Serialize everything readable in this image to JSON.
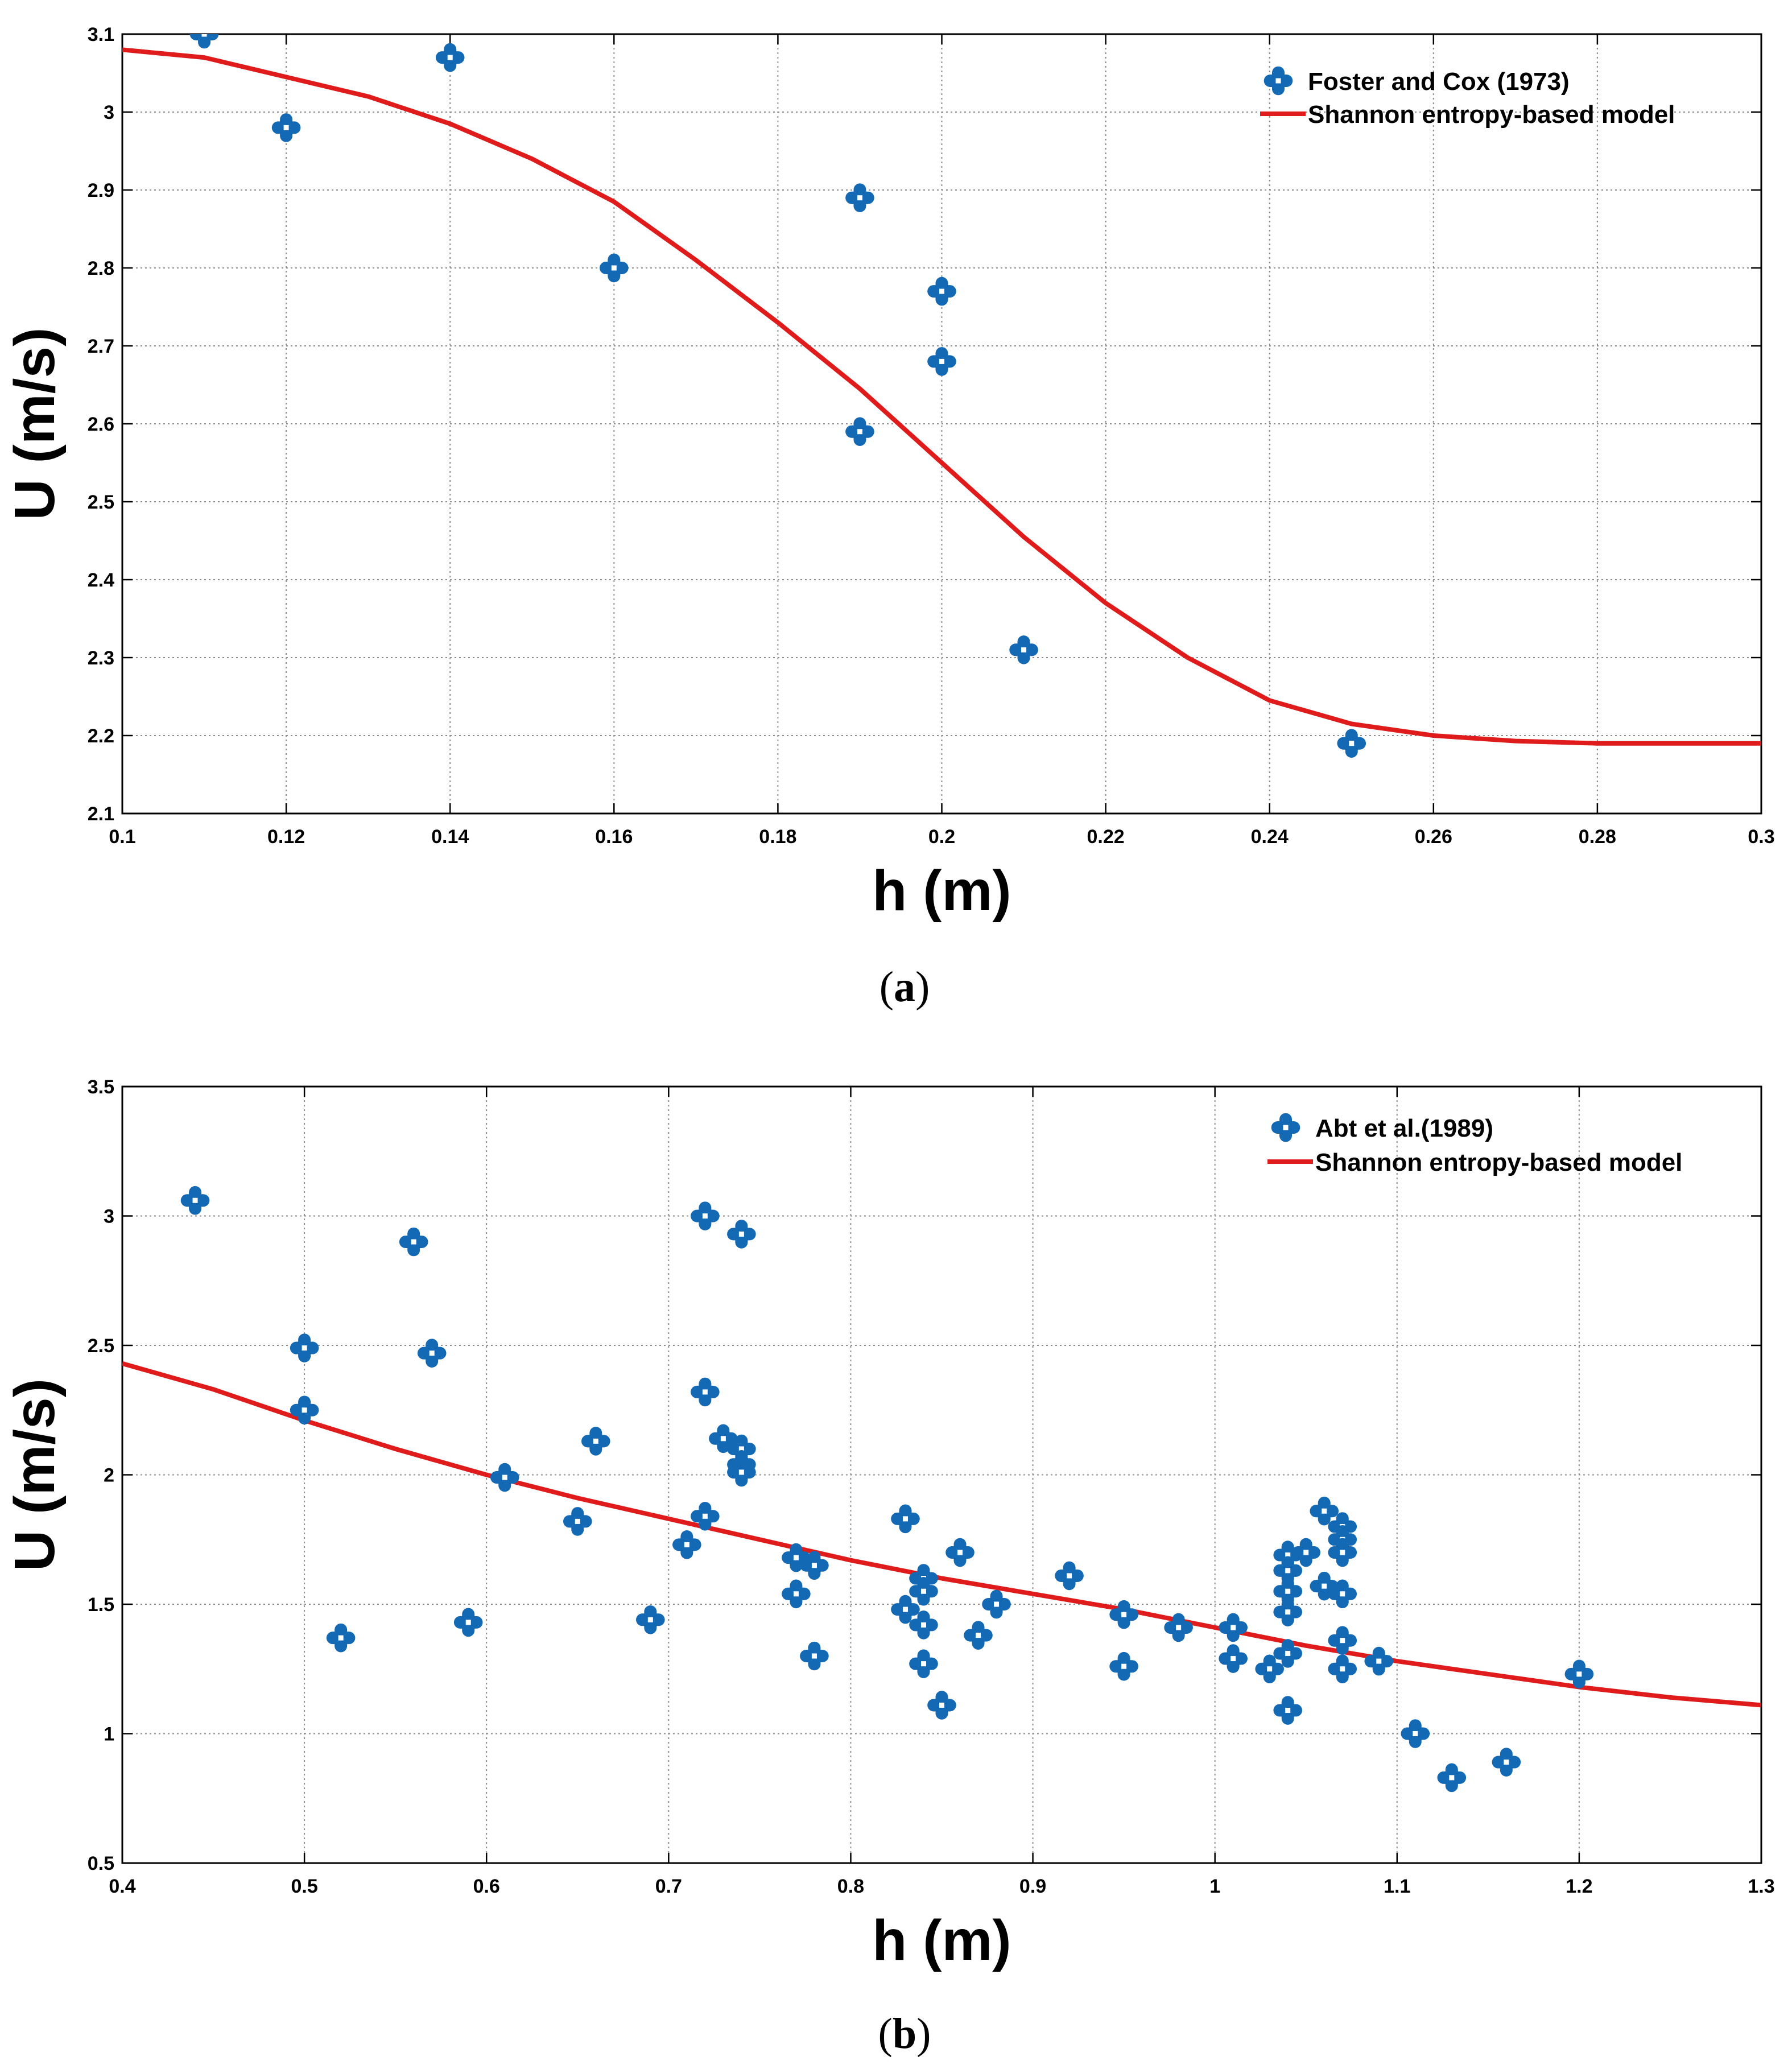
{
  "chart_data": [
    {
      "type": "scatter",
      "panel_id": "a",
      "caption": "(a)",
      "caption_letter": "a",
      "xlabel": "h (m)",
      "ylabel": "U (m/s)",
      "xlim": [
        0.1,
        0.3
      ],
      "ylim": [
        2.1,
        3.1
      ],
      "xticks": [
        0.1,
        0.12,
        0.14,
        0.16,
        0.18,
        0.2,
        0.22,
        0.24,
        0.26,
        0.28,
        0.3
      ],
      "yticks": [
        2.1,
        2.2,
        2.3,
        2.4,
        2.5,
        2.6,
        2.7,
        2.8,
        2.9,
        3,
        3.1
      ],
      "xtick_labels": [
        "0.1",
        "0.12",
        "0.14",
        "0.16",
        "0.18",
        "0.2",
        "0.22",
        "0.24",
        "0.26",
        "0.28",
        "0.3"
      ],
      "ytick_labels": [
        "2.1",
        "2.2",
        "2.3",
        "2.4",
        "2.5",
        "2.6",
        "2.7",
        "2.8",
        "2.9",
        "3",
        "3.1"
      ],
      "grid": true,
      "legend_position": "top-right",
      "series": [
        {
          "name": "Foster and Cox (1973)",
          "kind": "scatter",
          "color": "#1469b4",
          "points": [
            [
              0.11,
              3.1
            ],
            [
              0.12,
              2.98
            ],
            [
              0.14,
              3.07
            ],
            [
              0.16,
              2.8
            ],
            [
              0.19,
              2.89
            ],
            [
              0.19,
              2.59
            ],
            [
              0.2,
              2.77
            ],
            [
              0.2,
              2.68
            ],
            [
              0.21,
              2.31
            ],
            [
              0.25,
              2.19
            ]
          ]
        },
        {
          "name": "Shannon entropy-based model",
          "kind": "line",
          "color": "#e01b1b",
          "points": [
            [
              0.1,
              3.08
            ],
            [
              0.11,
              3.07
            ],
            [
              0.12,
              3.045
            ],
            [
              0.13,
              3.02
            ],
            [
              0.14,
              2.985
            ],
            [
              0.15,
              2.94
            ],
            [
              0.16,
              2.885
            ],
            [
              0.17,
              2.81
            ],
            [
              0.18,
              2.73
            ],
            [
              0.19,
              2.645
            ],
            [
              0.2,
              2.55
            ],
            [
              0.21,
              2.455
            ],
            [
              0.22,
              2.37
            ],
            [
              0.23,
              2.3
            ],
            [
              0.24,
              2.245
            ],
            [
              0.25,
              2.215
            ],
            [
              0.26,
              2.2
            ],
            [
              0.27,
              2.193
            ],
            [
              0.28,
              2.19
            ],
            [
              0.29,
              2.19
            ],
            [
              0.3,
              2.19
            ]
          ]
        }
      ]
    },
    {
      "type": "scatter",
      "panel_id": "b",
      "caption": "(b)",
      "caption_letter": "b",
      "xlabel": "h (m)",
      "ylabel": "U (m/s)",
      "xlim": [
        0.4,
        1.3
      ],
      "ylim": [
        0.5,
        3.5
      ],
      "xticks": [
        0.4,
        0.5,
        0.6,
        0.7,
        0.8,
        0.9,
        1,
        1.1,
        1.2,
        1.3
      ],
      "yticks": [
        0.5,
        1,
        1.5,
        2,
        2.5,
        3,
        3.5
      ],
      "xtick_labels": [
        "0.4",
        "0.5",
        "0.6",
        "0.7",
        "0.8",
        "0.9",
        "1",
        "1.1",
        "1.2",
        "1.3"
      ],
      "ytick_labels": [
        "0.5",
        "1",
        "1.5",
        "2",
        "2.5",
        "3",
        "3.5"
      ],
      "grid": true,
      "legend_position": "top-right",
      "series": [
        {
          "name": "Abt et al.(1989)",
          "kind": "scatter",
          "color": "#1469b4",
          "points": [
            [
              0.44,
              3.06
            ],
            [
              0.5,
              2.49
            ],
            [
              0.5,
              2.25
            ],
            [
              0.52,
              1.37
            ],
            [
              0.56,
              2.9
            ],
            [
              0.57,
              2.47
            ],
            [
              0.59,
              1.43
            ],
            [
              0.61,
              1.99
            ],
            [
              0.65,
              1.82
            ],
            [
              0.66,
              2.13
            ],
            [
              0.69,
              1.44
            ],
            [
              0.71,
              1.73
            ],
            [
              0.72,
              3.0
            ],
            [
              0.72,
              2.32
            ],
            [
              0.72,
              1.84
            ],
            [
              0.73,
              2.14
            ],
            [
              0.74,
              2.93
            ],
            [
              0.74,
              2.1
            ],
            [
              0.74,
              2.04
            ],
            [
              0.74,
              2.01
            ],
            [
              0.77,
              1.68
            ],
            [
              0.77,
              1.54
            ],
            [
              0.78,
              1.65
            ],
            [
              0.78,
              1.3
            ],
            [
              0.83,
              1.83
            ],
            [
              0.83,
              1.48
            ],
            [
              0.84,
              1.6
            ],
            [
              0.84,
              1.55
            ],
            [
              0.84,
              1.42
            ],
            [
              0.84,
              1.27
            ],
            [
              0.85,
              1.11
            ],
            [
              0.86,
              1.7
            ],
            [
              0.87,
              1.38
            ],
            [
              0.88,
              1.5
            ],
            [
              0.92,
              1.61
            ],
            [
              0.95,
              1.46
            ],
            [
              0.95,
              1.26
            ],
            [
              0.98,
              1.41
            ],
            [
              1.01,
              1.41
            ],
            [
              1.01,
              1.29
            ],
            [
              1.03,
              1.25
            ],
            [
              1.04,
              1.69
            ],
            [
              1.04,
              1.63
            ],
            [
              1.04,
              1.55
            ],
            [
              1.04,
              1.47
            ],
            [
              1.04,
              1.31
            ],
            [
              1.04,
              1.09
            ],
            [
              1.05,
              1.7
            ],
            [
              1.06,
              1.86
            ],
            [
              1.06,
              1.57
            ],
            [
              1.07,
              1.8
            ],
            [
              1.07,
              1.75
            ],
            [
              1.07,
              1.7
            ],
            [
              1.07,
              1.54
            ],
            [
              1.07,
              1.36
            ],
            [
              1.07,
              1.25
            ],
            [
              1.09,
              1.28
            ],
            [
              1.11,
              1.0
            ],
            [
              1.13,
              0.83
            ],
            [
              1.16,
              0.89
            ],
            [
              1.2,
              1.23
            ]
          ]
        },
        {
          "name": "Shannon entropy-based model",
          "kind": "line",
          "color": "#e01b1b",
          "points": [
            [
              0.4,
              2.43
            ],
            [
              0.45,
              2.33
            ],
            [
              0.5,
              2.21
            ],
            [
              0.55,
              2.1
            ],
            [
              0.6,
              2.0
            ],
            [
              0.65,
              1.91
            ],
            [
              0.7,
              1.83
            ],
            [
              0.75,
              1.75
            ],
            [
              0.8,
              1.67
            ],
            [
              0.85,
              1.6
            ],
            [
              0.9,
              1.54
            ],
            [
              0.95,
              1.48
            ],
            [
              1.0,
              1.41
            ],
            [
              1.05,
              1.34
            ],
            [
              1.1,
              1.28
            ],
            [
              1.15,
              1.23
            ],
            [
              1.2,
              1.18
            ],
            [
              1.25,
              1.14
            ],
            [
              1.3,
              1.11
            ]
          ]
        }
      ]
    }
  ]
}
